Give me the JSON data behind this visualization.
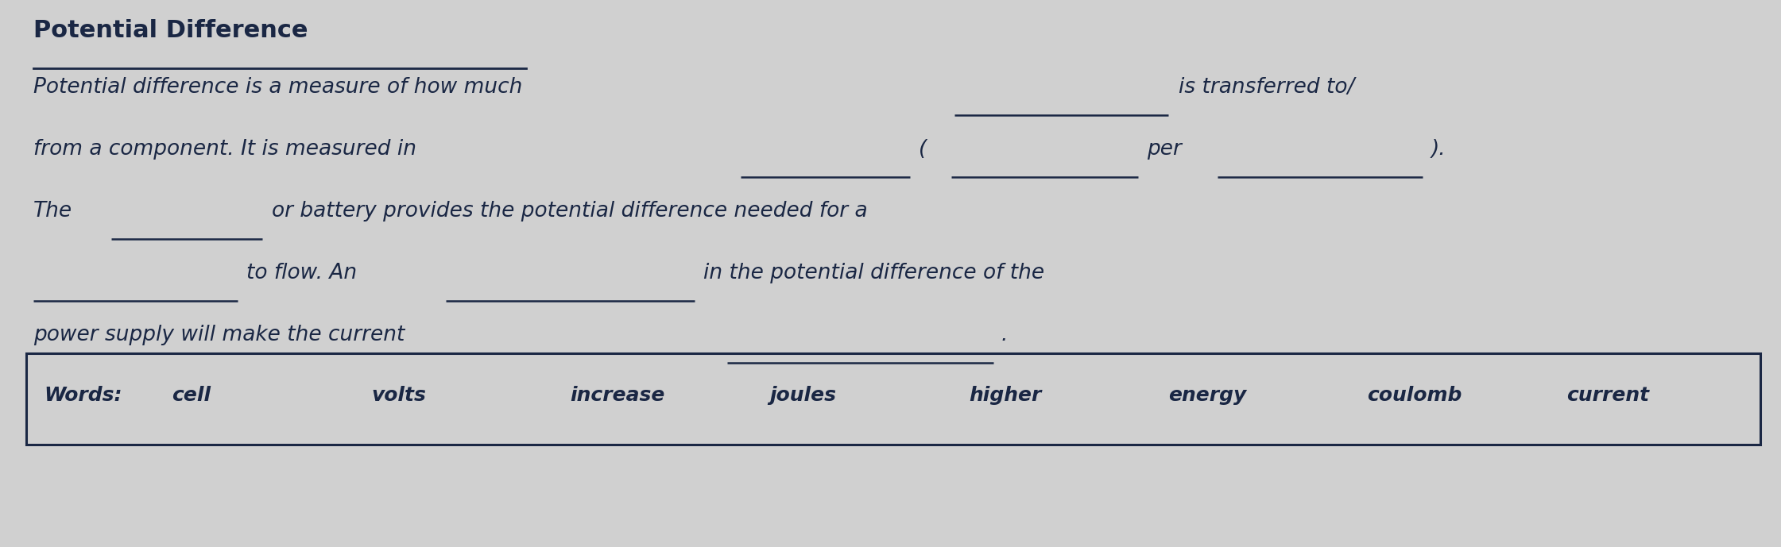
{
  "title": "Potential Difference",
  "bg_color": "#d0d0d0",
  "text_color": "#1a2744",
  "words_label": "Words:",
  "words": [
    "cell",
    "volts",
    "increase",
    "joules",
    "higher",
    "energy",
    "coulomb",
    "current"
  ],
  "font_size_title": 22,
  "font_size_body": 19,
  "font_size_words": 18
}
